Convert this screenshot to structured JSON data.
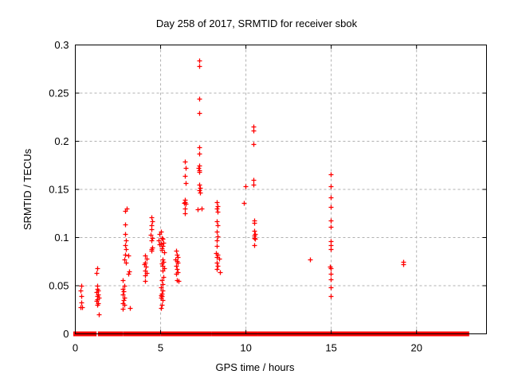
{
  "chart_data": {
    "type": "scatter",
    "title": "Day 258 of 2017, SRMTID for receiver sbok",
    "xlabel": "GPS time / hours",
    "ylabel": "SRMTID / TECUs",
    "xlim": [
      0,
      24.1
    ],
    "ylim": [
      0,
      0.3
    ],
    "x_ticks": [
      0,
      5,
      10,
      15,
      20
    ],
    "x_tick_labels": [
      "0",
      "5",
      "10",
      "15",
      "20"
    ],
    "y_ticks": [
      0,
      0.05,
      0.1,
      0.15,
      0.2,
      0.25,
      0.3
    ],
    "y_tick_labels": [
      "0",
      "0.05",
      "0.1",
      "0.15",
      "0.2",
      "0.25",
      "0.3"
    ],
    "grid": true,
    "legend": "none",
    "marker": {
      "shape": "plus",
      "color": "#ff0000",
      "size": 3,
      "stroke_width": 1.3
    },
    "zero_band_segments_hours": [
      [
        0.0,
        0.05
      ],
      [
        0.12,
        1.13
      ],
      [
        1.44,
        2.69
      ],
      [
        2.93,
        4.13
      ],
      [
        4.23,
        4.35
      ],
      [
        4.57,
        4.68
      ],
      [
        4.76,
        4.88
      ],
      [
        5.12,
        6.37
      ],
      [
        6.57,
        7.04
      ],
      [
        7.15,
        7.86
      ],
      [
        8.09,
        9.11
      ],
      [
        9.3,
        10.6
      ],
      [
        10.83,
        14.92
      ],
      [
        15.07,
        22.97
      ]
    ],
    "series": [
      {
        "name": "SRMTID",
        "points": [
          [
            0.33,
            0.05
          ],
          [
            0.3,
            0.045
          ],
          [
            0.35,
            0.039
          ],
          [
            0.33,
            0.033
          ],
          [
            0.3,
            0.028
          ],
          [
            0.4,
            0.028
          ],
          [
            1.3,
            0.068
          ],
          [
            1.26,
            0.063
          ],
          [
            1.3,
            0.05
          ],
          [
            1.28,
            0.047
          ],
          [
            1.35,
            0.045
          ],
          [
            1.25,
            0.043
          ],
          [
            1.32,
            0.041
          ],
          [
            1.28,
            0.039
          ],
          [
            1.38,
            0.038
          ],
          [
            1.3,
            0.036
          ],
          [
            1.25,
            0.034
          ],
          [
            1.33,
            0.032
          ],
          [
            1.3,
            0.03
          ],
          [
            1.36,
            0.02
          ],
          [
            3.0,
            0.13
          ],
          [
            2.93,
            0.128
          ],
          [
            2.9,
            0.114
          ],
          [
            2.93,
            0.104
          ],
          [
            2.96,
            0.097
          ],
          [
            2.9,
            0.092
          ],
          [
            2.95,
            0.088
          ],
          [
            2.92,
            0.082
          ],
          [
            2.87,
            0.077
          ],
          [
            2.95,
            0.074
          ],
          [
            2.8,
            0.056
          ],
          [
            2.86,
            0.05
          ],
          [
            2.78,
            0.047
          ],
          [
            2.83,
            0.044
          ],
          [
            2.8,
            0.041
          ],
          [
            2.88,
            0.038
          ],
          [
            2.82,
            0.035
          ],
          [
            2.78,
            0.032
          ],
          [
            2.85,
            0.03
          ],
          [
            2.8,
            0.026
          ],
          [
            3.12,
            0.081
          ],
          [
            3.15,
            0.065
          ],
          [
            3.1,
            0.062
          ],
          [
            3.18,
            0.027
          ],
          [
            4.1,
            0.081
          ],
          [
            4.16,
            0.078
          ],
          [
            4.1,
            0.074
          ],
          [
            4.05,
            0.072
          ],
          [
            4.12,
            0.07
          ],
          [
            4.1,
            0.066
          ],
          [
            4.16,
            0.063
          ],
          [
            4.08,
            0.061
          ],
          [
            4.1,
            0.055
          ],
          [
            4.45,
            0.121
          ],
          [
            4.5,
            0.117
          ],
          [
            4.45,
            0.113
          ],
          [
            4.48,
            0.109
          ],
          [
            4.42,
            0.103
          ],
          [
            4.5,
            0.1
          ],
          [
            4.45,
            0.097
          ],
          [
            4.5,
            0.09
          ],
          [
            4.45,
            0.088
          ],
          [
            4.48,
            0.086
          ],
          [
            5.0,
            0.106
          ],
          [
            4.95,
            0.104
          ],
          [
            5.05,
            0.1
          ],
          [
            4.9,
            0.097
          ],
          [
            5.0,
            0.094
          ],
          [
            4.95,
            0.093
          ],
          [
            5.05,
            0.089
          ],
          [
            5.1,
            0.099
          ],
          [
            5.15,
            0.095
          ],
          [
            5.1,
            0.091
          ],
          [
            5.05,
            0.087
          ],
          [
            5.2,
            0.085
          ],
          [
            5.1,
            0.077
          ],
          [
            5.15,
            0.075
          ],
          [
            5.05,
            0.073
          ],
          [
            5.1,
            0.071
          ],
          [
            5.2,
            0.068
          ],
          [
            5.1,
            0.066
          ],
          [
            5.15,
            0.059
          ],
          [
            5.05,
            0.056
          ],
          [
            5.12,
            0.052
          ],
          [
            5.0,
            0.048
          ],
          [
            5.1,
            0.045
          ],
          [
            5.05,
            0.042
          ],
          [
            5.0,
            0.04
          ],
          [
            5.08,
            0.039
          ],
          [
            5.02,
            0.038
          ],
          [
            5.1,
            0.035
          ],
          [
            5.05,
            0.03
          ],
          [
            5.0,
            0.027
          ],
          [
            5.9,
            0.086
          ],
          [
            5.95,
            0.082
          ],
          [
            6.0,
            0.08
          ],
          [
            5.88,
            0.077
          ],
          [
            5.95,
            0.076
          ],
          [
            6.0,
            0.074
          ],
          [
            5.9,
            0.071
          ],
          [
            5.95,
            0.067
          ],
          [
            6.02,
            0.064
          ],
          [
            5.92,
            0.062
          ],
          [
            5.97,
            0.056
          ],
          [
            6.05,
            0.055
          ],
          [
            6.4,
            0.179
          ],
          [
            6.45,
            0.172
          ],
          [
            6.4,
            0.164
          ],
          [
            6.45,
            0.157
          ],
          [
            6.4,
            0.139
          ],
          [
            6.43,
            0.137
          ],
          [
            6.37,
            0.136
          ],
          [
            6.45,
            0.135
          ],
          [
            6.4,
            0.13
          ],
          [
            6.42,
            0.125
          ],
          [
            7.25,
            0.284
          ],
          [
            7.25,
            0.278
          ],
          [
            7.25,
            0.244
          ],
          [
            7.25,
            0.229
          ],
          [
            7.25,
            0.194
          ],
          [
            7.27,
            0.187
          ],
          [
            7.25,
            0.175
          ],
          [
            7.22,
            0.172
          ],
          [
            7.28,
            0.17
          ],
          [
            7.25,
            0.168
          ],
          [
            7.25,
            0.155
          ],
          [
            7.3,
            0.152
          ],
          [
            7.28,
            0.149
          ],
          [
            7.33,
            0.147
          ],
          [
            7.4,
            0.13
          ],
          [
            7.18,
            0.129
          ],
          [
            8.3,
            0.137
          ],
          [
            8.33,
            0.133
          ],
          [
            8.3,
            0.13
          ],
          [
            8.36,
            0.127
          ],
          [
            8.3,
            0.117
          ],
          [
            8.33,
            0.113
          ],
          [
            8.3,
            0.106
          ],
          [
            8.36,
            0.101
          ],
          [
            8.3,
            0.097
          ],
          [
            8.3,
            0.091
          ],
          [
            8.25,
            0.084
          ],
          [
            8.36,
            0.082
          ],
          [
            8.3,
            0.08
          ],
          [
            8.42,
            0.078
          ],
          [
            8.3,
            0.074
          ],
          [
            8.36,
            0.071
          ],
          [
            8.3,
            0.067
          ],
          [
            8.46,
            0.064
          ],
          [
            9.95,
            0.153
          ],
          [
            9.9,
            0.136
          ],
          [
            10.42,
            0.215
          ],
          [
            10.44,
            0.211
          ],
          [
            10.42,
            0.197
          ],
          [
            10.45,
            0.16
          ],
          [
            10.45,
            0.155
          ],
          [
            10.5,
            0.118
          ],
          [
            10.5,
            0.115
          ],
          [
            10.48,
            0.107
          ],
          [
            10.53,
            0.104
          ],
          [
            10.48,
            0.102
          ],
          [
            10.5,
            0.1
          ],
          [
            10.53,
            0.099
          ],
          [
            10.5,
            0.092
          ],
          [
            13.77,
            0.077
          ],
          [
            14.95,
            0.166
          ],
          [
            14.95,
            0.153
          ],
          [
            14.95,
            0.142
          ],
          [
            14.95,
            0.132
          ],
          [
            14.95,
            0.118
          ],
          [
            14.95,
            0.111
          ],
          [
            14.95,
            0.096
          ],
          [
            14.95,
            0.092
          ],
          [
            14.95,
            0.088
          ],
          [
            14.92,
            0.07
          ],
          [
            14.97,
            0.068
          ],
          [
            14.95,
            0.062
          ],
          [
            14.95,
            0.057
          ],
          [
            14.95,
            0.048
          ],
          [
            14.95,
            0.039
          ],
          [
            19.2,
            0.075
          ],
          [
            19.2,
            0.072
          ]
        ]
      }
    ]
  },
  "colors": {
    "marker": "#ff0000",
    "grid": "#b0b0b0",
    "axis": "#000000",
    "background": "#ffffff",
    "text": "#000000"
  }
}
